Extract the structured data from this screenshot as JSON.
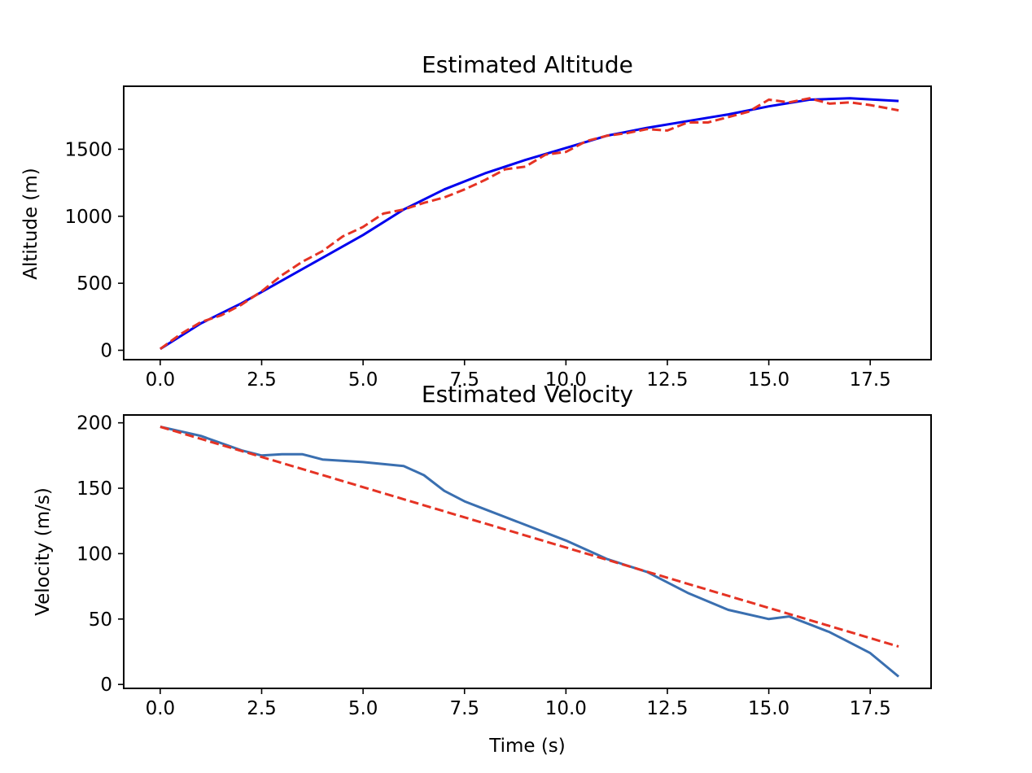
{
  "chart_data": [
    {
      "type": "line",
      "title": "Estimated Altitude",
      "xlabel": "",
      "ylabel": "Altitude (m)",
      "xlim": [
        -0.9,
        19.0
      ],
      "ylim": [
        -70,
        1970
      ],
      "xticks": [
        0.0,
        2.5,
        5.0,
        7.5,
        10.0,
        12.5,
        15.0,
        17.5
      ],
      "xtick_labels": [
        "0.0",
        "2.5",
        "5.0",
        "7.5",
        "10.0",
        "12.5",
        "15.0",
        "17.5"
      ],
      "yticks": [
        0,
        500,
        1000,
        1500
      ],
      "ytick_labels": [
        "0",
        "500",
        "1000",
        "1500"
      ],
      "grid": false,
      "series": [
        {
          "color": "#0000ee",
          "style": "solid",
          "x": [
            0,
            1,
            2,
            3,
            4,
            5,
            6,
            7,
            8,
            9,
            10,
            11,
            12,
            13,
            14,
            15,
            16,
            17,
            18.2
          ],
          "y": [
            10,
            200,
            350,
            520,
            690,
            860,
            1050,
            1200,
            1320,
            1420,
            1510,
            1600,
            1660,
            1710,
            1760,
            1820,
            1870,
            1880,
            1860
          ]
        },
        {
          "color": "#e53324",
          "style": "dashed",
          "x": [
            0,
            0.5,
            1,
            1.5,
            2,
            2.5,
            3,
            3.5,
            4,
            4.5,
            5,
            5.5,
            6,
            6.5,
            7,
            7.5,
            8,
            8.5,
            9,
            9.5,
            10,
            10.5,
            11,
            11.5,
            12,
            12.5,
            13,
            13.5,
            14,
            14.5,
            15,
            15.5,
            16,
            16.5,
            17,
            17.5,
            18.2
          ],
          "y": [
            10,
            120,
            210,
            260,
            340,
            440,
            560,
            660,
            740,
            850,
            920,
            1020,
            1050,
            1100,
            1140,
            1200,
            1270,
            1350,
            1370,
            1460,
            1480,
            1560,
            1600,
            1620,
            1650,
            1640,
            1700,
            1700,
            1740,
            1780,
            1870,
            1850,
            1880,
            1840,
            1850,
            1830,
            1790
          ]
        }
      ]
    },
    {
      "type": "line",
      "title": "Estimated Velocity",
      "xlabel": "Time (s)",
      "ylabel": "Velocity (m/s)",
      "xlim": [
        -0.9,
        19.0
      ],
      "ylim": [
        -3,
        206
      ],
      "xticks": [
        0.0,
        2.5,
        5.0,
        7.5,
        10.0,
        12.5,
        15.0,
        17.5
      ],
      "xtick_labels": [
        "0.0",
        "2.5",
        "5.0",
        "7.5",
        "10.0",
        "12.5",
        "15.0",
        "17.5"
      ],
      "yticks": [
        0,
        50,
        100,
        150,
        200
      ],
      "ytick_labels": [
        "0",
        "50",
        "100",
        "150",
        "200"
      ],
      "grid": false,
      "series": [
        {
          "color": "#3a6fb0",
          "style": "solid",
          "x": [
            0,
            1,
            2,
            2.5,
            3,
            3.5,
            4,
            5,
            6,
            6.5,
            7,
            7.5,
            8,
            9,
            10,
            11,
            11.5,
            12,
            13,
            14,
            15,
            15.5,
            16,
            16.5,
            17,
            17.5,
            18.2
          ],
          "y": [
            197,
            190,
            179,
            175,
            176,
            176,
            172,
            170,
            167,
            160,
            148,
            140,
            134,
            122,
            110,
            96,
            91,
            86,
            70,
            57,
            50,
            52,
            46,
            40,
            32,
            24,
            6
          ]
        },
        {
          "color": "#e53324",
          "style": "dashed",
          "x": [
            0,
            18.2
          ],
          "y": [
            197,
            29
          ]
        }
      ]
    }
  ]
}
